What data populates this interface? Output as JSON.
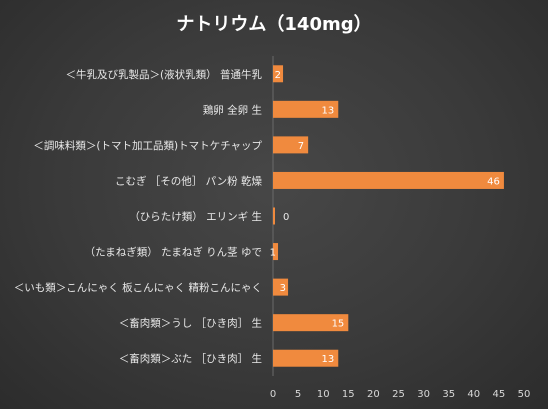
{
  "chart_data": {
    "type": "bar",
    "orientation": "horizontal",
    "title": "ナトリウム（140mg）",
    "categories": [
      "＜牛乳及び乳製品＞(液状乳類） 普通牛乳",
      "鶏卵 全卵 生",
      "＜調味料類＞(トマト加工品類)トマトケチャップ",
      "こむぎ ［その他］ パン粉 乾燥",
      "（ひらたけ類） エリンギ 生",
      "（たまねぎ類） たまねぎ りん茎 ゆで",
      "＜いも類＞こんにゃく 板こんにゃく 精粉こんにゃく",
      "＜畜肉類＞うし ［ひき肉］ 生",
      "＜畜肉類＞ぶた ［ひき肉］ 生"
    ],
    "values": [
      2,
      13,
      7,
      46,
      0,
      1,
      3,
      15,
      13
    ],
    "xlim": [
      0,
      50
    ],
    "xticks": [
      0,
      5,
      10,
      15,
      20,
      25,
      30,
      35,
      40,
      45,
      50
    ],
    "bar_color": "#f08a3e",
    "grid": false,
    "legend": "none"
  }
}
